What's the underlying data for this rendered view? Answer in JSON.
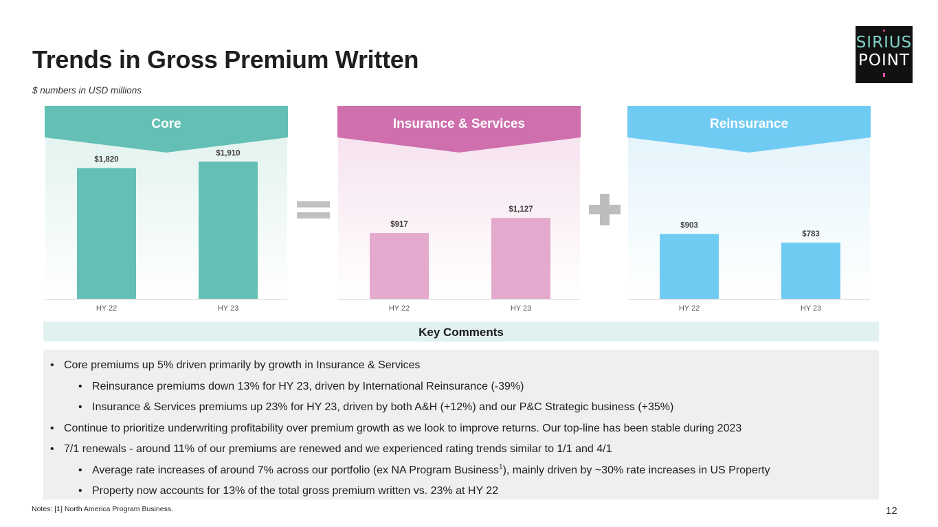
{
  "header": {
    "title": "Trends in Gross Premium Written",
    "subtitle": "$ numbers in USD millions",
    "logo_line1": "SIRIUS",
    "logo_line2": "POINT"
  },
  "operators": {
    "equals": "=",
    "plus": "+"
  },
  "chart_data": [
    {
      "type": "bar",
      "title": "Core",
      "categories": [
        "HY 22",
        "HY 23"
      ],
      "values": [
        1820,
        1910
      ],
      "data_labels": [
        "$1,820",
        "$1,910"
      ],
      "color": "#64c0b4",
      "banner_color": "#64c0b4",
      "background_color": "#e3f3f0",
      "ylim": [
        0,
        2200
      ]
    },
    {
      "type": "bar",
      "title": "Insurance & Services",
      "categories": [
        "HY 22",
        "HY 23"
      ],
      "values": [
        917,
        1127
      ],
      "data_labels": [
        "$917",
        "$1,127"
      ],
      "color": "#e3aacd",
      "banner_color": "#cf6fae",
      "background_color": "#f6e3ef",
      "ylim": [
        0,
        2200
      ]
    },
    {
      "type": "bar",
      "title": "Reinsurance",
      "categories": [
        "HY 22",
        "HY 23"
      ],
      "values": [
        903,
        783
      ],
      "data_labels": [
        "$903",
        "$783"
      ],
      "color": "#70cbf3",
      "banner_color": "#70cbf3",
      "background_color": "#e4f4fc",
      "ylim": [
        0,
        2200
      ]
    }
  ],
  "key_comments": {
    "heading": "Key Comments",
    "items": [
      {
        "level": 0,
        "text": "Core premiums up 5% driven primarily by growth in Insurance & Services"
      },
      {
        "level": 1,
        "text": "Reinsurance premiums down 13% for HY 23, driven by International Reinsurance (-39%)"
      },
      {
        "level": 1,
        "text": "Insurance & Services premiums up 23% for HY 23, driven by both A&H (+12%) and our P&C Strategic business (+35%)"
      },
      {
        "level": 0,
        "text": "Continue to prioritize underwriting profitability over premium growth as we look to improve returns. Our top-line has been stable during 2023"
      },
      {
        "level": 0,
        "text": "7/1 renewals - around 11% of our premiums are renewed and we experienced rating trends similar to 1/1 and 4/1"
      },
      {
        "level": 1,
        "text": "Average rate increases of around 7% across our portfolio (ex NA Program Business",
        "sup": "1",
        "text_after": "), mainly driven by ~30% rate increases in US Property"
      },
      {
        "level": 1,
        "text": "Property now accounts for 13% of the total gross premium written vs. 23% at HY 22"
      }
    ]
  },
  "footer": {
    "notes": "Notes: [1] North America Program Business.",
    "page_number": "12"
  }
}
